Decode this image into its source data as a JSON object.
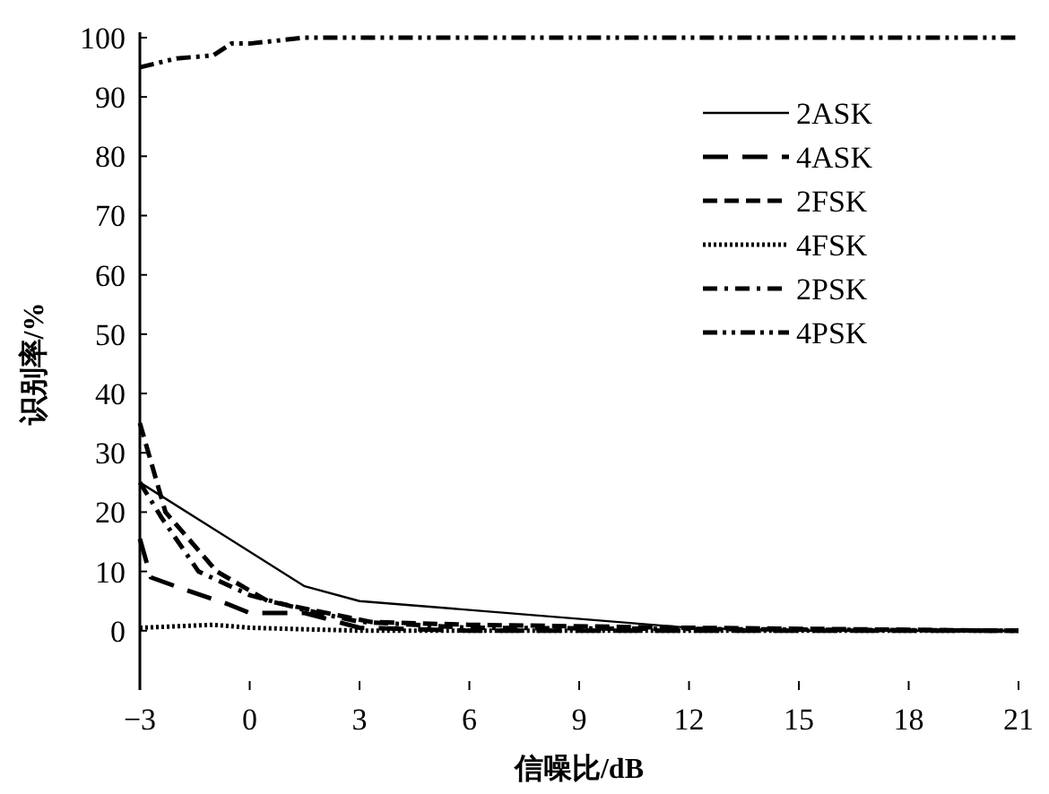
{
  "chart_data": {
    "type": "line",
    "xlabel": "信噪比/dB",
    "ylabel": "识别率/%",
    "xlim": [
      -3,
      21
    ],
    "ylim": [
      -10,
      100
    ],
    "xticks": [
      {
        "value": -3,
        "label": "−3"
      },
      0,
      3,
      6,
      9,
      12,
      15,
      18,
      21
    ],
    "yticks": [
      0,
      10,
      20,
      30,
      40,
      50,
      60,
      70,
      80,
      90,
      100
    ],
    "legend": "top right",
    "marker": "none",
    "grid": false,
    "series": [
      {
        "name": "2ASK",
        "color": "#000000",
        "line_style": "solid",
        "x": [
          -3,
          1.5,
          3,
          12,
          15,
          21
        ],
        "values": [
          25,
          7.5,
          5,
          0.5,
          0,
          0
        ]
      },
      {
        "name": "4ASK",
        "color": "#000000",
        "line_style": "longdash",
        "x": [
          -3,
          -2.7,
          -1.8,
          -0.6,
          0,
          1.5,
          3,
          6,
          21
        ],
        "values": [
          15.5,
          9,
          7,
          4.5,
          3,
          3,
          0.5,
          0,
          0
        ]
      },
      {
        "name": "2FSK",
        "color": "#000000",
        "line_style": "dashed",
        "x": [
          -3,
          -2.3,
          -0.9,
          0.5,
          3.3,
          6,
          12,
          21
        ],
        "values": [
          35,
          20,
          10,
          5,
          1.5,
          1,
          0.5,
          0
        ]
      },
      {
        "name": "4FSK",
        "color": "#000000",
        "line_style": "dotted",
        "x": [
          -3,
          -1,
          0,
          3,
          21
        ],
        "values": [
          0.5,
          1,
          0.5,
          0,
          0
        ]
      },
      {
        "name": "2PSK",
        "color": "#000000",
        "line_style": "dashdot",
        "x": [
          -3,
          -2.4,
          -1.4,
          0,
          1.5,
          3,
          6,
          21
        ],
        "values": [
          25,
          19,
          10,
          6,
          3.5,
          1.5,
          0.5,
          0
        ]
      },
      {
        "name": "4PSK",
        "color": "#000000",
        "line_style": "dashdotdot",
        "x": [
          -3,
          -2,
          -1,
          -0.5,
          0,
          1.5,
          21
        ],
        "values": [
          95,
          96.5,
          97,
          99,
          99,
          100,
          100
        ]
      }
    ]
  }
}
